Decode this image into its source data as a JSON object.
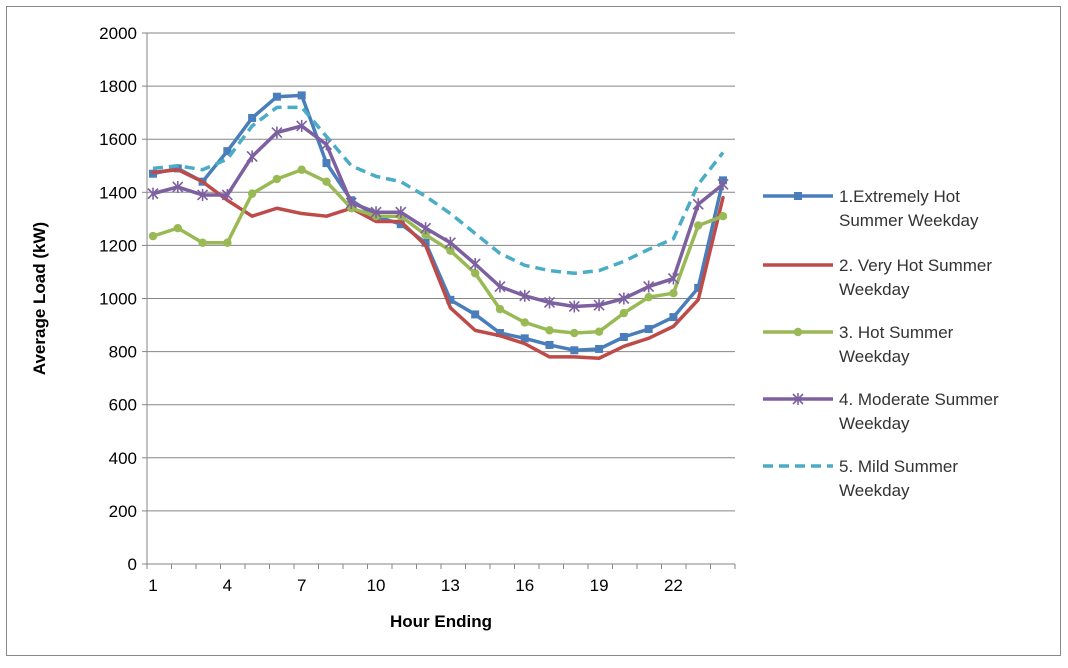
{
  "chart_data": {
    "type": "line",
    "title": "",
    "xlabel": "Hour Ending",
    "ylabel": "Average Load (kW)",
    "x": [
      1,
      2,
      3,
      4,
      5,
      6,
      7,
      8,
      9,
      10,
      11,
      12,
      13,
      14,
      15,
      16,
      17,
      18,
      19,
      20,
      21,
      22,
      23,
      24
    ],
    "x_tick_labels": [
      "1",
      "4",
      "7",
      "10",
      "13",
      "16",
      "19",
      "22"
    ],
    "y_tick_labels": [
      "0",
      "200",
      "400",
      "600",
      "800",
      "1000",
      "1200",
      "1400",
      "1600",
      "1800",
      "2000"
    ],
    "ylim": [
      0,
      2000
    ],
    "grid": "horizontal",
    "legend_position": "right",
    "series": [
      {
        "name": "1.Extremely Hot Summer Weekday",
        "color": "#4a7ebb",
        "dash": "solid",
        "marker": "square",
        "values": [
          1470,
          1490,
          1440,
          1555,
          1680,
          1760,
          1765,
          1510,
          1370,
          1310,
          1280,
          1210,
          995,
          940,
          870,
          850,
          825,
          805,
          810,
          855,
          885,
          930,
          1040,
          1445
        ]
      },
      {
        "name": "2. Very Hot Summer Weekday",
        "color": "#be4b48",
        "dash": "solid",
        "marker": "none",
        "values": [
          1475,
          1485,
          1440,
          1370,
          1310,
          1340,
          1320,
          1310,
          1340,
          1290,
          1290,
          1200,
          965,
          880,
          860,
          830,
          780,
          780,
          775,
          820,
          850,
          895,
          995,
          1380
        ]
      },
      {
        "name": "3. Hot Summer Weekday",
        "color": "#98b954",
        "dash": "solid",
        "marker": "circle",
        "values": [
          1235,
          1265,
          1210,
          1210,
          1395,
          1450,
          1485,
          1440,
          1340,
          1310,
          1310,
          1240,
          1180,
          1095,
          960,
          910,
          880,
          870,
          875,
          945,
          1005,
          1020,
          1275,
          1310
        ]
      },
      {
        "name": "4. Moderate Summer Weekday",
        "color": "#7d60a0",
        "dash": "solid",
        "marker": "star",
        "values": [
          1395,
          1420,
          1390,
          1390,
          1535,
          1625,
          1650,
          1580,
          1360,
          1325,
          1325,
          1265,
          1210,
          1130,
          1045,
          1010,
          985,
          970,
          975,
          1000,
          1045,
          1075,
          1355,
          1430
        ]
      },
      {
        "name": "5. Mild Summer Weekday",
        "color": "#4bacc6",
        "dash": "dashed",
        "marker": "none",
        "values": [
          1490,
          1500,
          1485,
          1525,
          1650,
          1720,
          1720,
          1610,
          1500,
          1460,
          1440,
          1385,
          1320,
          1245,
          1170,
          1125,
          1105,
          1095,
          1105,
          1140,
          1185,
          1225,
          1430,
          1550
        ]
      }
    ]
  }
}
